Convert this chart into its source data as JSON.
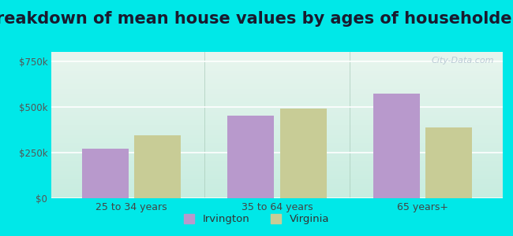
{
  "title": "Breakdown of mean house values by ages of householders",
  "categories": [
    "25 to 34 years",
    "35 to 64 years",
    "65 years+"
  ],
  "irvington_values": [
    270000,
    450000,
    570000
  ],
  "virginia_values": [
    345000,
    490000,
    385000
  ],
  "irvington_color": "#b899cc",
  "virginia_color": "#c8cc96",
  "background_outer": "#00e8e8",
  "bg_top": "#e8f5ee",
  "bg_bottom": "#c8ede0",
  "yticks": [
    0,
    250000,
    500000,
    750000
  ],
  "ytick_labels": [
    "$0",
    "$250k",
    "$500k",
    "$750k"
  ],
  "legend_labels": [
    "Irvington",
    "Virginia"
  ],
  "ylim": [
    0,
    800000
  ],
  "title_fontsize": 15,
  "watermark": "City-Data.com"
}
